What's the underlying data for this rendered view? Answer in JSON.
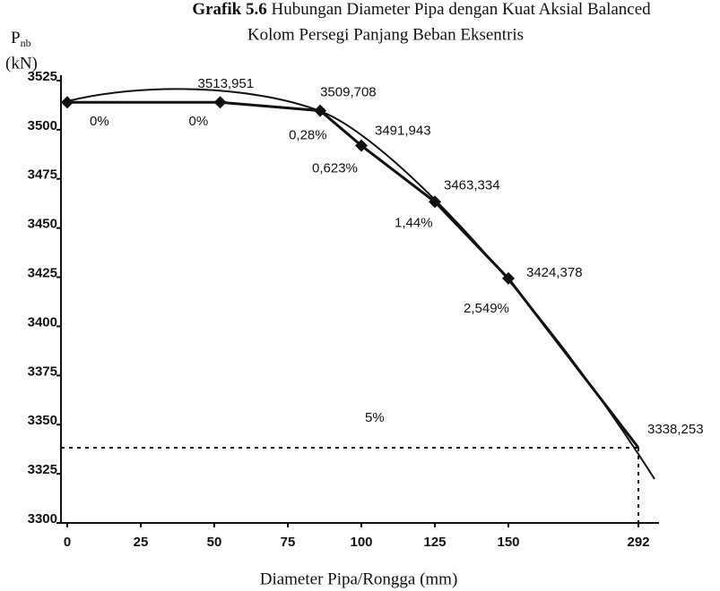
{
  "chart_data": {
    "type": "line",
    "title_prefix": "Grafik 5.6",
    "title": "Hubungan Diameter Pipa dengan Kuat Aksial Balanced",
    "subtitle": "Kolom Persegi Panjang Beban Eksentris",
    "y_label_main": "P",
    "y_label_sub": "nb",
    "y_label_unit": "(kN)",
    "x_label": "Diameter Pipa/Rongga (mm)",
    "x": [
      0,
      52,
      86,
      100,
      125,
      150,
      292
    ],
    "values": [
      3513.951,
      3513.951,
      3509.708,
      3491.943,
      3463.334,
      3424.378,
      3338.253
    ],
    "value_labels": [
      null,
      "3513,951",
      "3509,708",
      "3491,943",
      "3463,334",
      "3424,378",
      "3338,253"
    ],
    "point_labels": [
      "0%",
      "0%",
      "0,28%",
      "0,623%",
      "1,44%",
      "2,549%",
      "5%"
    ],
    "color": "#111111",
    "xticks": [
      0,
      25,
      50,
      75,
      100,
      125,
      150,
      292
    ],
    "ylim": [
      3300,
      3525
    ],
    "yticks": [
      3300,
      3325,
      3350,
      3375,
      3400,
      3425,
      3450,
      3475,
      3500,
      3525
    ]
  }
}
